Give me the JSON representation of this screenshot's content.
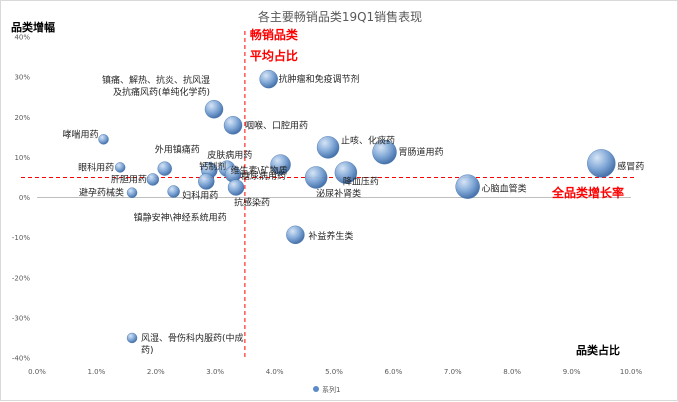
{
  "colors": {
    "bubble_light": "#d4e3f5",
    "bubble_mid": "#7ea6d6",
    "bubble_dark": "#3e6ca8",
    "avg_line": "#ff0000",
    "grid_zero": "#bfbfbf",
    "tick_text": "#595959"
  },
  "chart_data": {
    "type": "bubble",
    "title": "各主要畅销品类19Q1销售表现",
    "y_corner_label": "品类增幅",
    "x_corner_label": "品类占比",
    "avg_share_label": [
      "畅销品类",
      "平均占比"
    ],
    "avg_growth_label": "全品类增长率",
    "legend": "系列1",
    "x_ticks": [
      "0.0%",
      "1.0%",
      "2.0%",
      "3.0%",
      "4.0%",
      "5.0%",
      "6.0%",
      "7.0%",
      "8.0%",
      "9.0%",
      "10.0%"
    ],
    "y_ticks": [
      "40%",
      "30%",
      "20%",
      "10%",
      "0%",
      "-10%",
      "-20%",
      "-30%",
      "-40%"
    ],
    "xlim": [
      0,
      10
    ],
    "ylim": [
      -40,
      40
    ],
    "x_unit": "%",
    "y_unit": "%",
    "avg_share_x": 3.5,
    "avg_growth_y": 5,
    "points": [
      {
        "label": "抗肿瘤和免疫调节剂",
        "x": 3.9,
        "y": 29.5,
        "r": 9
      },
      {
        "label": "镇痛、解热、抗炎、抗风湿\n及抗痛风药(单纯化学药)",
        "x": 2.98,
        "y": 22,
        "r": 9
      },
      {
        "label": "咽喉、口腔用药",
        "x": 3.3,
        "y": 18,
        "r": 9
      },
      {
        "label": "哮喘用药",
        "x": 1.12,
        "y": 14.5,
        "r": 5
      },
      {
        "label": "止咳、化痰药",
        "x": 4.9,
        "y": 12.5,
        "r": 11
      },
      {
        "label": "胃肠道用药",
        "x": 5.85,
        "y": 11.3,
        "r": 12
      },
      {
        "label": "外用镇痛药",
        "x": 2.15,
        "y": 7.2,
        "r": 7
      },
      {
        "label": "维生素\\矿物质",
        "x": 4.1,
        "y": 8.2,
        "r": 10
      },
      {
        "label": "皮肤病用药",
        "x": 2.9,
        "y": 6.8,
        "r": 8
      },
      {
        "label": "钙制剂",
        "x": 3.2,
        "y": 7.2,
        "r": 8
      },
      {
        "label": "眼科用药",
        "x": 1.4,
        "y": 7.5,
        "r": 5
      },
      {
        "label": "降血压药",
        "x": 5.2,
        "y": 6.2,
        "r": 11
      },
      {
        "label": "感冒药",
        "x": 9.5,
        "y": 8.5,
        "r": 14
      },
      {
        "label": "糖尿病用药",
        "x": 3.3,
        "y": 5.8,
        "r": 8
      },
      {
        "label": "泌尿补肾类",
        "x": 4.7,
        "y": 5,
        "r": 11
      },
      {
        "label": "肝胆用药",
        "x": 1.95,
        "y": 4.5,
        "r": 6
      },
      {
        "label": "心脑血管类",
        "x": 7.25,
        "y": 2.7,
        "r": 12
      },
      {
        "label": "避孕药械类",
        "x": 1.6,
        "y": 1.2,
        "r": 5
      },
      {
        "label": "镇静安神\\神经系统用药",
        "x": 2.3,
        "y": 1.5,
        "r": 6
      },
      {
        "label": "妇科用药",
        "x": 2.85,
        "y": 4,
        "r": 8
      },
      {
        "label": "抗感染药",
        "x": 3.35,
        "y": 2.5,
        "r": 8
      },
      {
        "label": "补益养生类",
        "x": 4.35,
        "y": -9.3,
        "r": 9
      },
      {
        "label": "风湿、骨伤科内服药(中成\n药)",
        "x": 1.6,
        "y": -35,
        "r": 5
      }
    ]
  }
}
